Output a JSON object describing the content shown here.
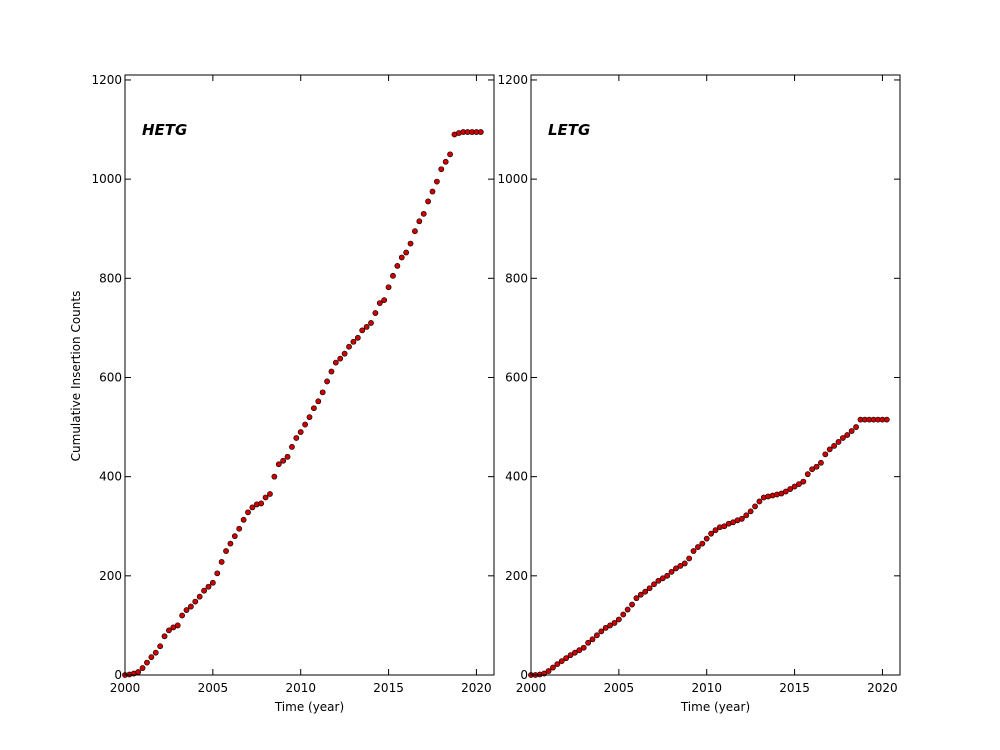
{
  "figure": {
    "ylabel": "Cumulative Insertion Counts"
  },
  "chart_data": [
    {
      "type": "scatter",
      "label": "HETG",
      "xlabel": "Time (year)",
      "ylabel": "Cumulative Insertion Counts",
      "xlim": [
        2000,
        2021
      ],
      "ylim": [
        0,
        1210
      ],
      "xticks": [
        2000,
        2005,
        2010,
        2015,
        2020
      ],
      "yticks": [
        0,
        200,
        400,
        600,
        800,
        1000,
        1200
      ],
      "grid": false,
      "marker_color": "#cc0000",
      "marker_edge": "#000000",
      "x": [
        2000.0,
        2000.25,
        2000.5,
        2000.75,
        2001.0,
        2001.25,
        2001.5,
        2001.75,
        2002.0,
        2002.25,
        2002.5,
        2002.75,
        2003.0,
        2003.25,
        2003.5,
        2003.75,
        2004.0,
        2004.25,
        2004.5,
        2004.75,
        2005.0,
        2005.25,
        2005.5,
        2005.75,
        2006.0,
        2006.25,
        2006.5,
        2006.75,
        2007.0,
        2007.25,
        2007.5,
        2007.75,
        2008.0,
        2008.25,
        2008.5,
        2008.75,
        2009.0,
        2009.25,
        2009.5,
        2009.75,
        2010.0,
        2010.25,
        2010.5,
        2010.75,
        2011.0,
        2011.25,
        2011.5,
        2011.75,
        2012.0,
        2012.25,
        2012.5,
        2012.75,
        2013.0,
        2013.25,
        2013.5,
        2013.75,
        2014.0,
        2014.25,
        2014.5,
        2014.75,
        2015.0,
        2015.25,
        2015.5,
        2015.75,
        2016.0,
        2016.25,
        2016.5,
        2016.75,
        2017.0,
        2017.25,
        2017.5,
        2017.75,
        2018.0,
        2018.25,
        2018.5,
        2018.75,
        2019.0,
        2019.25,
        2019.5,
        2019.75,
        2020.0,
        2020.25
      ],
      "y": [
        0,
        1,
        3,
        6,
        14,
        25,
        36,
        45,
        58,
        78,
        90,
        96,
        100,
        120,
        131,
        138,
        148,
        158,
        170,
        178,
        186,
        205,
        228,
        250,
        265,
        280,
        295,
        313,
        328,
        338,
        344,
        346,
        358,
        365,
        400,
        425,
        432,
        440,
        460,
        478,
        490,
        505,
        520,
        538,
        552,
        570,
        592,
        612,
        630,
        638,
        648,
        662,
        672,
        680,
        695,
        702,
        710,
        730,
        750,
        756,
        782,
        805,
        825,
        842,
        852,
        870,
        895,
        915,
        930,
        955,
        975,
        995,
        1020,
        1035,
        1050,
        1090,
        1093,
        1095,
        1095,
        1095,
        1095,
        1095
      ]
    },
    {
      "type": "scatter",
      "label": "LETG",
      "xlabel": "Time (year)",
      "ylabel": "",
      "xlim": [
        2000,
        2021
      ],
      "ylim": [
        0,
        1210
      ],
      "xticks": [
        2000,
        2005,
        2010,
        2015,
        2020
      ],
      "yticks": [
        0,
        200,
        400,
        600,
        800,
        1000,
        1200
      ],
      "grid": false,
      "marker_color": "#cc0000",
      "marker_edge": "#000000",
      "x": [
        2000.0,
        2000.25,
        2000.5,
        2000.75,
        2001.0,
        2001.25,
        2001.5,
        2001.75,
        2002.0,
        2002.25,
        2002.5,
        2002.75,
        2003.0,
        2003.25,
        2003.5,
        2003.75,
        2004.0,
        2004.25,
        2004.5,
        2004.75,
        2005.0,
        2005.25,
        2005.5,
        2005.75,
        2006.0,
        2006.25,
        2006.5,
        2006.75,
        2007.0,
        2007.25,
        2007.5,
        2007.75,
        2008.0,
        2008.25,
        2008.5,
        2008.75,
        2009.0,
        2009.25,
        2009.5,
        2009.75,
        2010.0,
        2010.25,
        2010.5,
        2010.75,
        2011.0,
        2011.25,
        2011.5,
        2011.75,
        2012.0,
        2012.25,
        2012.5,
        2012.75,
        2013.0,
        2013.25,
        2013.5,
        2013.75,
        2014.0,
        2014.25,
        2014.5,
        2014.75,
        2015.0,
        2015.25,
        2015.5,
        2015.75,
        2016.0,
        2016.25,
        2016.5,
        2016.75,
        2017.0,
        2017.25,
        2017.5,
        2017.75,
        2018.0,
        2018.25,
        2018.5,
        2018.75,
        2019.0,
        2019.25,
        2019.5,
        2019.75,
        2020.0,
        2020.25
      ],
      "y": [
        0,
        0,
        1,
        3,
        8,
        15,
        22,
        28,
        34,
        40,
        45,
        50,
        55,
        65,
        72,
        80,
        88,
        95,
        100,
        105,
        112,
        122,
        132,
        142,
        155,
        162,
        168,
        175,
        183,
        190,
        195,
        200,
        208,
        215,
        220,
        225,
        235,
        250,
        258,
        265,
        275,
        285,
        292,
        298,
        300,
        305,
        308,
        312,
        315,
        322,
        330,
        340,
        350,
        358,
        360,
        362,
        364,
        366,
        370,
        375,
        380,
        385,
        390,
        405,
        415,
        420,
        428,
        445,
        455,
        462,
        470,
        478,
        484,
        492,
        500,
        515,
        515,
        515,
        515,
        515,
        515,
        515
      ]
    }
  ]
}
